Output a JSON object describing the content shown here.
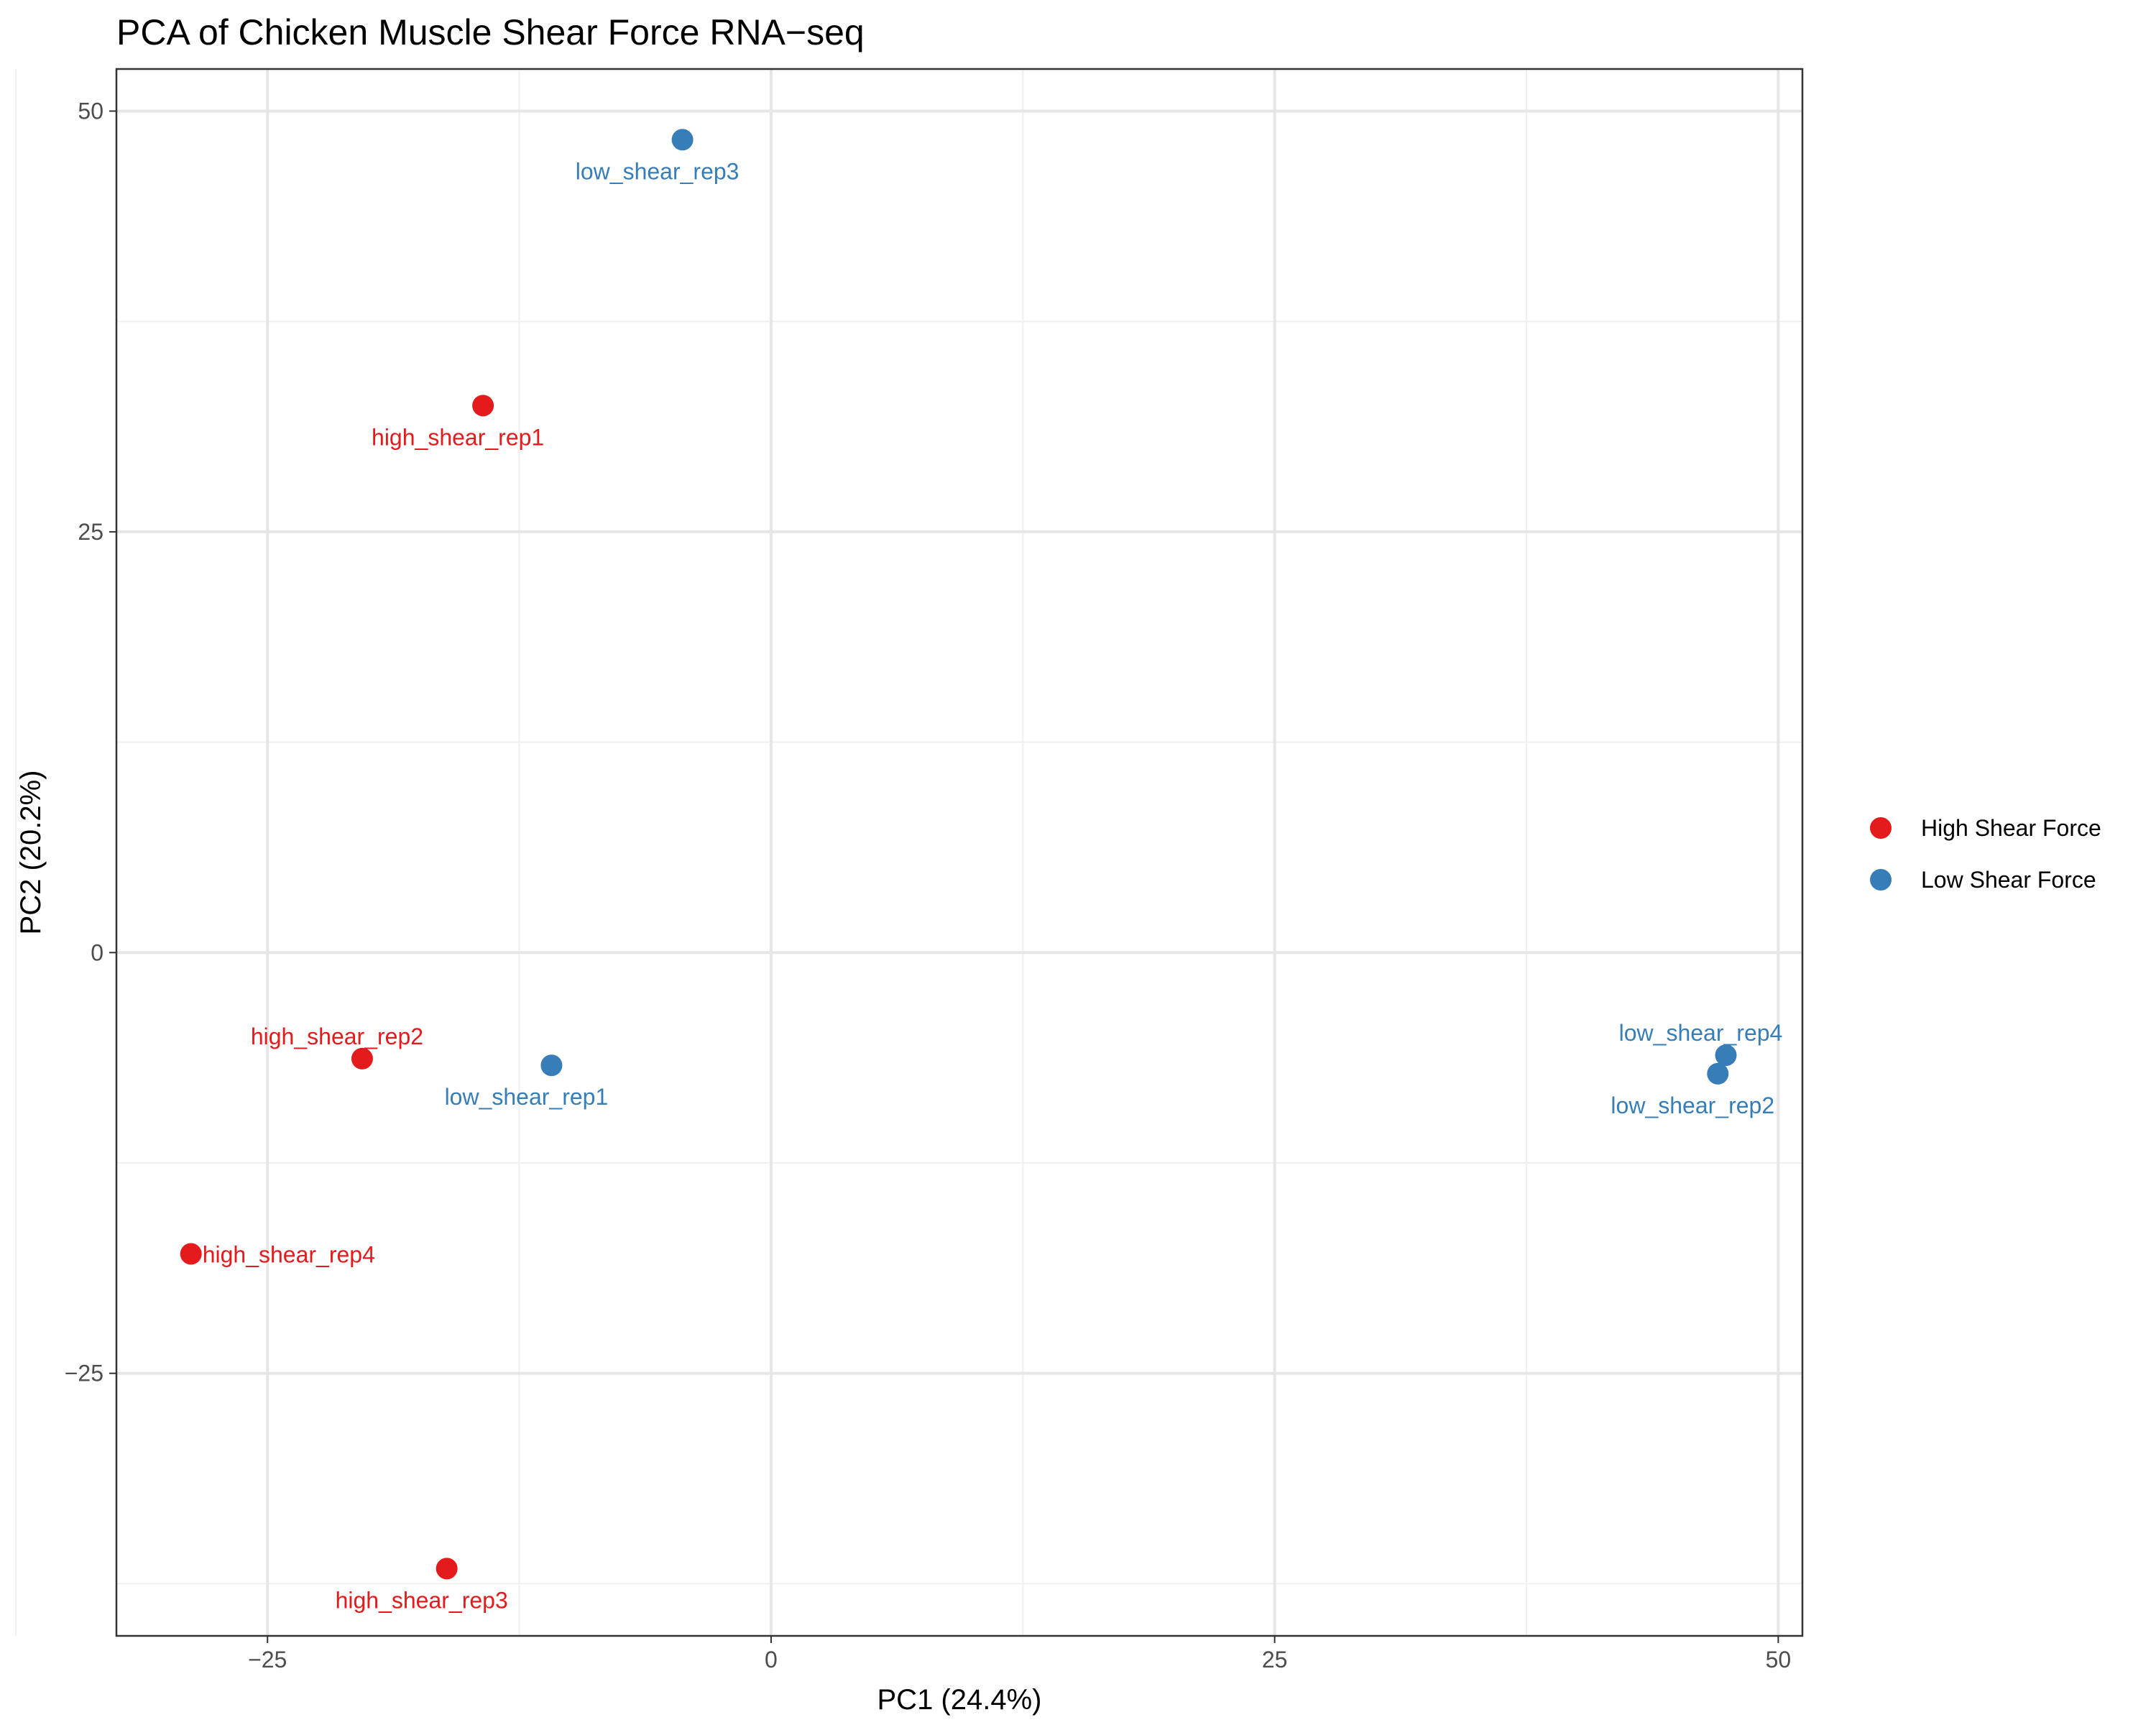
{
  "chart_data": {
    "type": "scatter",
    "title": "PCA of Chicken Muscle Shear Force RNA−seq",
    "xlabel": "PC1 (24.4%)",
    "ylabel": "PC2 (20.2%)",
    "xlim": [
      -32.5,
      51.2
    ],
    "ylim": [
      -40.6,
      52.5
    ],
    "x_ticks": [
      {
        "value": -25,
        "label": "−25"
      },
      {
        "value": 0,
        "label": "0"
      },
      {
        "value": 25,
        "label": "25"
      },
      {
        "value": 50,
        "label": "50"
      }
    ],
    "y_ticks": [
      {
        "value": -25,
        "label": "−25"
      },
      {
        "value": 0,
        "label": "0"
      },
      {
        "value": 25,
        "label": "25"
      },
      {
        "value": 50,
        "label": "50"
      }
    ],
    "x_minor_ticks": [
      -37.5,
      -12.5,
      12.5,
      37.5
    ],
    "y_minor_ticks": [
      -37.5,
      -12.5,
      12.5,
      37.5
    ],
    "grid": true,
    "legend_position": "right",
    "series": [
      {
        "name": "High Shear Force",
        "color": "#E41A1C",
        "points": [
          {
            "label": "high_shear_rep1",
            "x": -14.3,
            "y": 32.5
          },
          {
            "label": "high_shear_rep2",
            "x": -20.3,
            "y": -6.3
          },
          {
            "label": "high_shear_rep3",
            "x": -16.1,
            "y": -36.6
          },
          {
            "label": "high_shear_rep4",
            "x": -28.8,
            "y": -17.9
          }
        ]
      },
      {
        "name": "Low Shear Force",
        "color": "#377EB8",
        "points": [
          {
            "label": "low_shear_rep1",
            "x": -10.9,
            "y": -6.7
          },
          {
            "label": "low_shear_rep2",
            "x": 47.0,
            "y": -7.2
          },
          {
            "label": "low_shear_rep3",
            "x": -4.4,
            "y": 48.3
          },
          {
            "label": "low_shear_rep4",
            "x": 47.4,
            "y": -6.1
          }
        ]
      }
    ]
  }
}
